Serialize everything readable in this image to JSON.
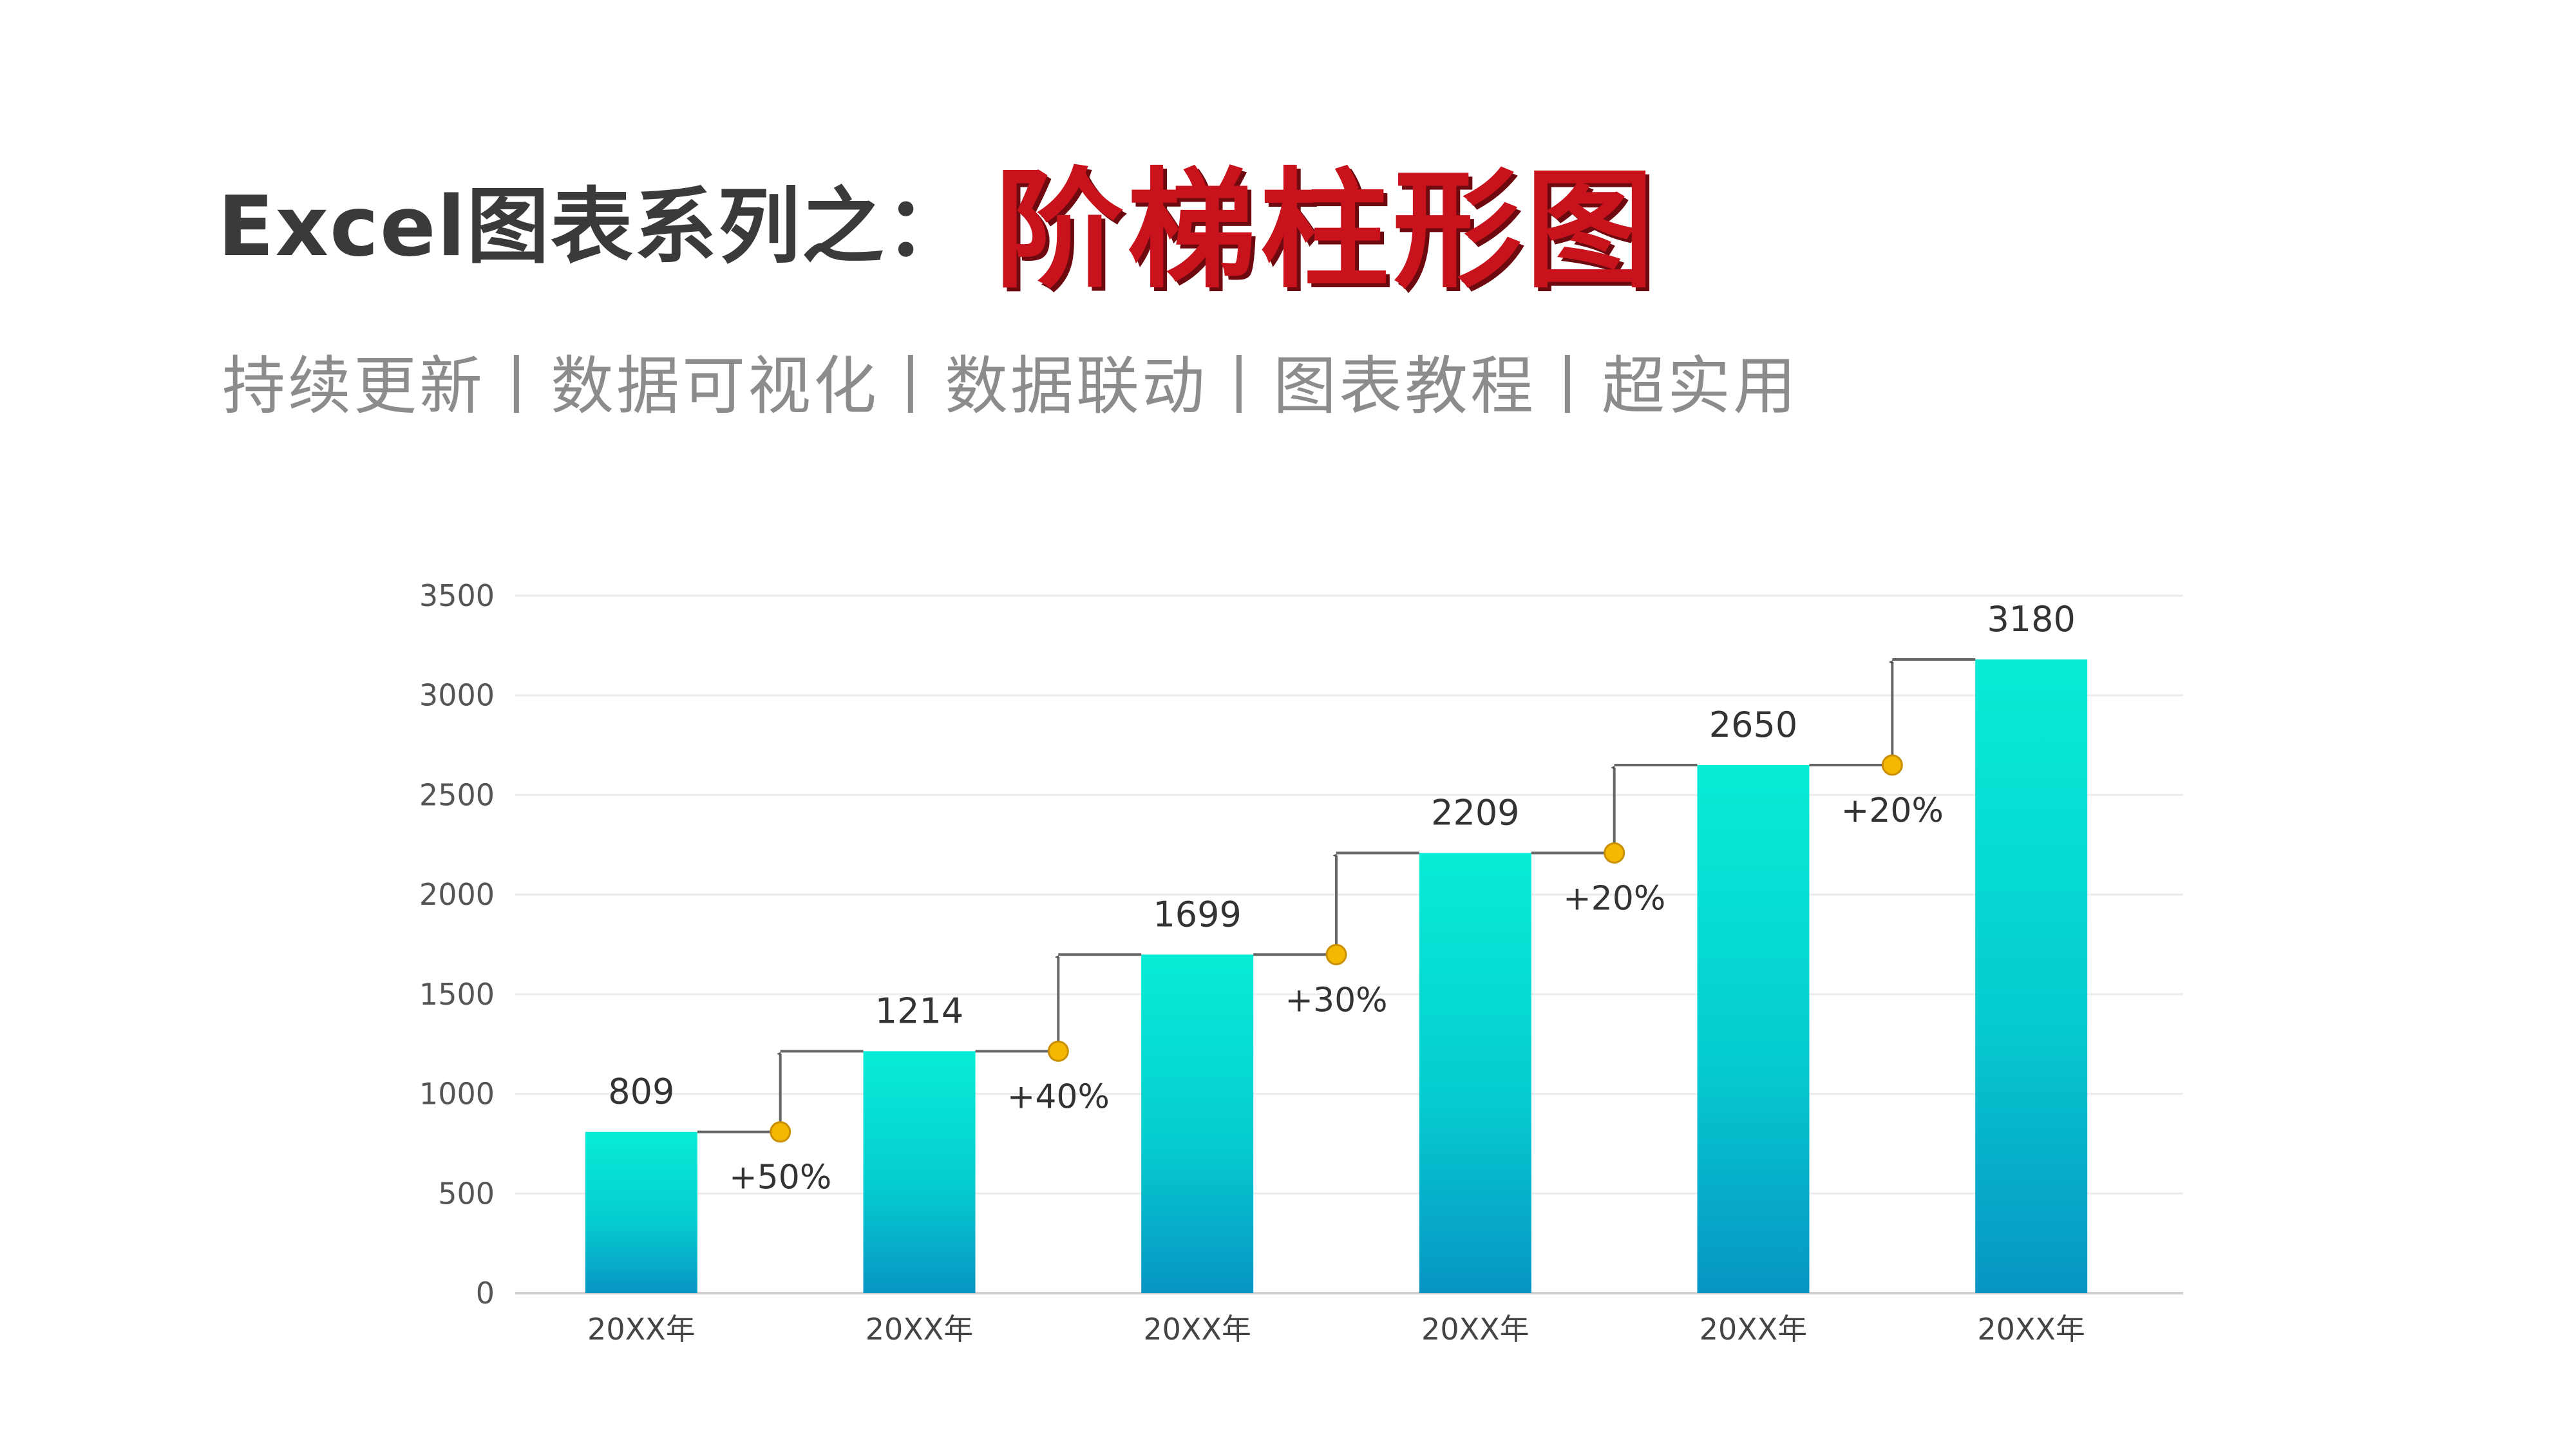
{
  "title": {
    "prefix": "Excel图表系列之：",
    "highlight": "阶梯柱形图"
  },
  "subtitle": "持续更新丨数据可视化丨数据联动丨图表教程丨超实用",
  "colors": {
    "bar_top": "#07ecd6",
    "bar_bottom": "#0795c4",
    "connector": "#666666",
    "marker": "#f5b800",
    "title_highlight": "#c8121c"
  },
  "chart_data": {
    "type": "bar",
    "categories": [
      "20XX年",
      "20XX年",
      "20XX年",
      "20XX年",
      "20XX年",
      "20XX年"
    ],
    "values": [
      809,
      1214,
      1699,
      2209,
      2650,
      3180
    ],
    "growth_labels": [
      "+50%",
      "+40%",
      "+30%",
      "+20%",
      "+20%"
    ],
    "ylim": [
      0,
      3500
    ],
    "yticks": [
      0,
      500,
      1000,
      1500,
      2000,
      2500,
      3000,
      3500
    ],
    "grid": true,
    "title": "",
    "xlabel": "",
    "ylabel": ""
  }
}
